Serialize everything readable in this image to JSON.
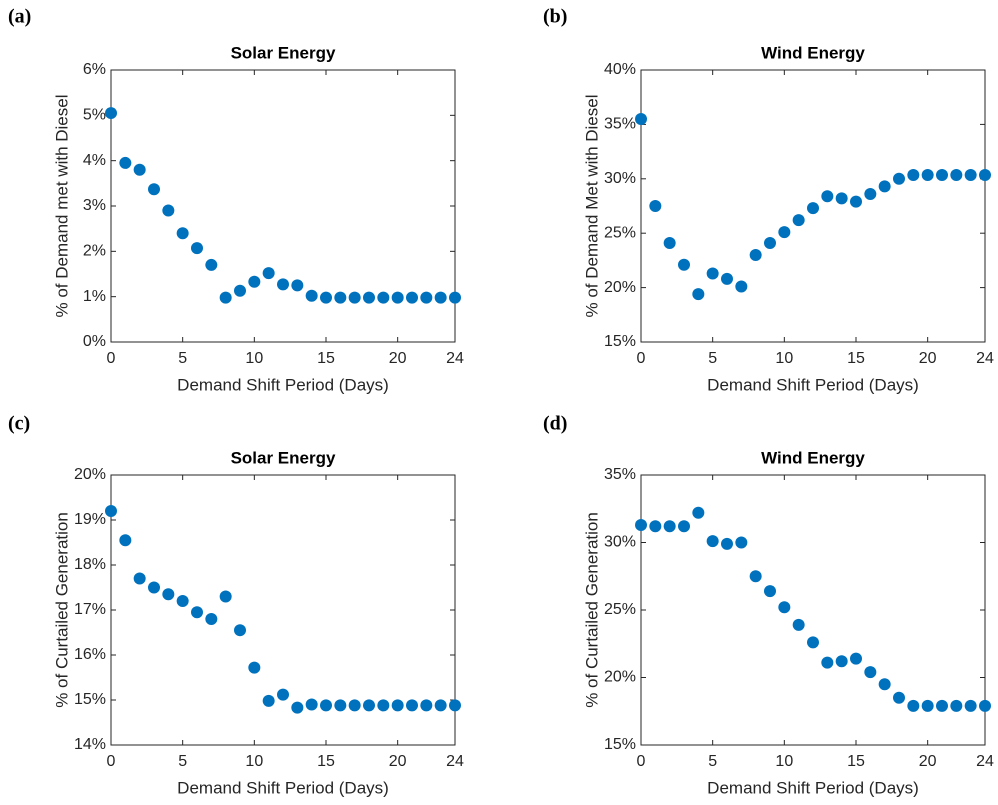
{
  "chart_data": [
    {
      "type": "scatter",
      "label": "(a)",
      "title": "Solar Energy",
      "x_label": "Demand Shift Period (Days)",
      "y_label": "% of Demand met with Diesel",
      "color": "#0072BD",
      "x": [
        0,
        1,
        2,
        3,
        4,
        5,
        6,
        7,
        8,
        9,
        10,
        11,
        12,
        13,
        14,
        15,
        16,
        17,
        18,
        19,
        20,
        21,
        22,
        23,
        24
      ],
      "values": [
        5.05,
        3.95,
        3.8,
        3.37,
        2.9,
        2.4,
        2.07,
        1.7,
        0.98,
        1.13,
        1.33,
        1.52,
        1.27,
        1.25,
        1.02,
        0.98,
        0.98,
        0.98,
        0.98,
        0.98,
        0.98,
        0.98,
        0.98,
        0.98,
        0.98
      ],
      "xlim": [
        0,
        24
      ],
      "xticks": [
        0,
        5,
        10,
        15,
        20,
        24
      ],
      "ylim": [
        0,
        6
      ],
      "yticks": [
        {
          "value": 0,
          "label": "0%"
        },
        {
          "value": 1,
          "label": "1%"
        },
        {
          "value": 2,
          "label": "2%"
        },
        {
          "value": 3,
          "label": "3%"
        },
        {
          "value": 4,
          "label": "4%"
        },
        {
          "value": 5,
          "label": "5%"
        },
        {
          "value": 6,
          "label": "6%"
        }
      ]
    },
    {
      "type": "scatter",
      "label": "(b)",
      "title": "Wind Energy",
      "x_label": "Demand Shift Period (Days)",
      "y_label": "% of Demand Met with Diesel",
      "color": "#0072BD",
      "x": [
        0,
        1,
        2,
        3,
        4,
        5,
        6,
        7,
        8,
        9,
        10,
        11,
        12,
        13,
        14,
        15,
        16,
        17,
        18,
        19,
        20,
        21,
        22,
        23,
        24
      ],
      "values": [
        35.5,
        27.5,
        24.1,
        22.1,
        19.4,
        21.3,
        20.8,
        20.1,
        23,
        24.1,
        25.1,
        26.2,
        27.3,
        28.4,
        28.2,
        27.9,
        28.6,
        29.3,
        30,
        30.35,
        30.35,
        30.35,
        30.35,
        30.35,
        30.35
      ],
      "xlim": [
        0,
        24
      ],
      "xticks": [
        0,
        5,
        10,
        15,
        20,
        24
      ],
      "ylim": [
        15,
        40
      ],
      "yticks": [
        {
          "value": 15,
          "label": "15%"
        },
        {
          "value": 20,
          "label": "20%"
        },
        {
          "value": 25,
          "label": "25%"
        },
        {
          "value": 30,
          "label": "30%"
        },
        {
          "value": 35,
          "label": "35%"
        },
        {
          "value": 40,
          "label": "40%"
        }
      ]
    },
    {
      "type": "scatter",
      "label": "(c)",
      "title": "Solar Energy",
      "x_label": "Demand Shift Period (Days)",
      "y_label": "% of Curtailed Generation",
      "color": "#0072BD",
      "x": [
        0,
        1,
        2,
        3,
        4,
        5,
        6,
        7,
        8,
        9,
        10,
        11,
        12,
        13,
        14,
        15,
        16,
        17,
        18,
        19,
        20,
        21,
        22,
        23,
        24
      ],
      "values": [
        19.2,
        18.55,
        17.7,
        17.5,
        17.35,
        17.2,
        16.95,
        16.8,
        17.3,
        16.55,
        15.72,
        14.98,
        15.12,
        14.83,
        14.9,
        14.88,
        14.88,
        14.88,
        14.88,
        14.88,
        14.88,
        14.88,
        14.88,
        14.88,
        14.88
      ],
      "xlim": [
        0,
        24
      ],
      "xticks": [
        0,
        5,
        10,
        15,
        20,
        24
      ],
      "ylim": [
        14,
        20
      ],
      "yticks": [
        {
          "value": 14,
          "label": "14%"
        },
        {
          "value": 15,
          "label": "15%"
        },
        {
          "value": 16,
          "label": "16%"
        },
        {
          "value": 17,
          "label": "17%"
        },
        {
          "value": 18,
          "label": "18%"
        },
        {
          "value": 19,
          "label": "19%"
        },
        {
          "value": 20,
          "label": "20%"
        }
      ]
    },
    {
      "type": "scatter",
      "label": "(d)",
      "title": "Wind Energy",
      "x_label": "Demand Shift Period (Days)",
      "y_label": "% of Curtailed Generation",
      "color": "#0072BD",
      "x": [
        0,
        1,
        2,
        3,
        4,
        5,
        6,
        7,
        8,
        9,
        10,
        11,
        12,
        13,
        14,
        15,
        16,
        17,
        18,
        19,
        20,
        21,
        22,
        23,
        24
      ],
      "values": [
        31.3,
        31.2,
        31.2,
        31.2,
        32.2,
        30.1,
        29.9,
        30,
        27.5,
        26.4,
        25.2,
        23.9,
        22.6,
        21.1,
        21.2,
        21.4,
        20.4,
        19.5,
        18.5,
        17.9,
        17.9,
        17.9,
        17.9,
        17.9,
        17.9
      ],
      "xlim": [
        0,
        24
      ],
      "xticks": [
        0,
        5,
        10,
        15,
        20,
        24
      ],
      "ylim": [
        15,
        35
      ],
      "yticks": [
        {
          "value": 15,
          "label": "15%"
        },
        {
          "value": 20,
          "label": "20%"
        },
        {
          "value": 25,
          "label": "25%"
        },
        {
          "value": 30,
          "label": "30%"
        },
        {
          "value": 35,
          "label": "35%"
        }
      ]
    }
  ]
}
